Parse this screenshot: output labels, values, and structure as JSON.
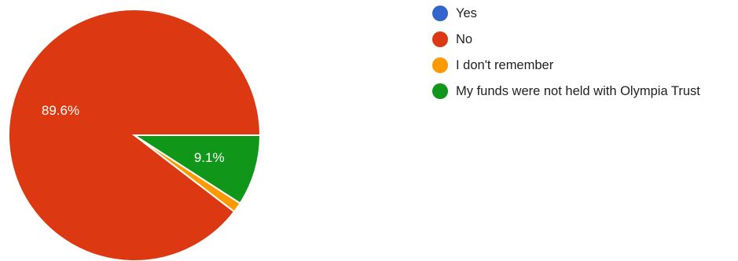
{
  "chart_data": {
    "type": "pie",
    "slices": [
      {
        "label": "Yes",
        "value": 0.0,
        "color": "#3366cc",
        "display": ""
      },
      {
        "label": "No",
        "value": 89.6,
        "color": "#dc3912",
        "display": "89.6%"
      },
      {
        "label": "I don't remember",
        "value": 1.3,
        "color": "#ff9900",
        "display": ""
      },
      {
        "label": "My funds were not held with Olympia Trust",
        "value": 9.1,
        "color": "#109618",
        "display": "9.1%"
      }
    ],
    "legend_position": "right",
    "start_angle_deg": 0,
    "direction": "counterclockwise"
  }
}
